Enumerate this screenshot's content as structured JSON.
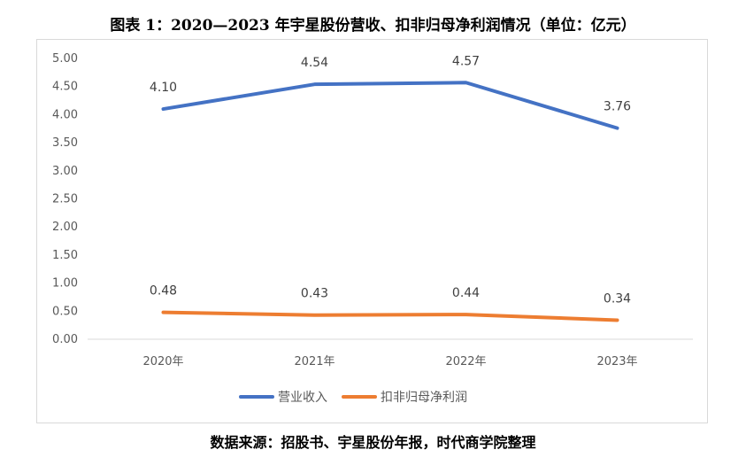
{
  "title": "图表 1：2020—2023 年宇星股份营收、扣非归母净利润情况（单位：亿元）",
  "source": "数据来源：招股书、宇星股份年报，时代商学院整理",
  "chart_data": {
    "type": "line",
    "categories": [
      "2020年",
      "2021年",
      "2022年",
      "2023年"
    ],
    "series": [
      {
        "name": "营业收入",
        "values": [
          4.1,
          4.54,
          4.57,
          3.76
        ],
        "labels": [
          "4.10",
          "4.54",
          "4.57",
          "3.76"
        ],
        "color": "#4472C4"
      },
      {
        "name": "扣非归母净利润",
        "values": [
          0.48,
          0.43,
          0.44,
          0.34
        ],
        "labels": [
          "0.48",
          "0.43",
          "0.44",
          "0.34"
        ],
        "color": "#ED7D31"
      }
    ],
    "yticks": [
      "0.00",
      "0.50",
      "1.00",
      "1.50",
      "2.00",
      "2.50",
      "3.00",
      "3.50",
      "4.00",
      "4.50",
      "5.00"
    ],
    "ylim": [
      0,
      5
    ],
    "grid": false,
    "legend_position": "bottom"
  }
}
